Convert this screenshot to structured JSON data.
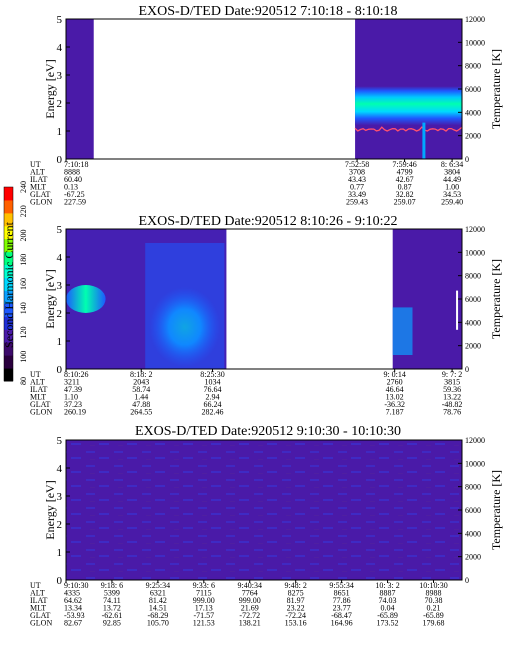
{
  "figure": {
    "colorbar": {
      "label": "Second Harmonic Current",
      "ticks": [
        "80",
        "100",
        "120",
        "140",
        "160",
        "180",
        "200",
        "220",
        "240"
      ],
      "colors": [
        "#000000",
        "#2a003e",
        "#3d0a6b",
        "#4a1aa8",
        "#1f2fd8",
        "#1d59ff",
        "#0aa0ff",
        "#00d8ff",
        "#00ffd0",
        "#00ff80",
        "#80ff00",
        "#ffff00",
        "#ffc000",
        "#ff6000",
        "#ff0000"
      ]
    }
  },
  "chart_data": [
    {
      "type": "heatmap",
      "title": "EXOS-D/TED   Date:920512  7:10:18 - 8:10:18",
      "ylabel": "Energy [eV]",
      "y2label": "Temperature [K]",
      "ylim": [
        0,
        5
      ],
      "y2lim": [
        0,
        12000
      ],
      "yticks": [
        "0",
        "1",
        "2",
        "3",
        "4",
        "5"
      ],
      "y2ticks": [
        "0",
        "2000",
        "4000",
        "6000",
        "8000",
        "10000",
        "12000"
      ],
      "data_segments": [
        {
          "start": 0.0,
          "end": 0.07,
          "pattern": "uniform",
          "base": "#4a1aa8"
        },
        {
          "start": 0.0,
          "end": 0.07,
          "pattern": "none"
        },
        {
          "start": 0.73,
          "end": 1.0,
          "pattern": "band",
          "base": "#4a1aa8",
          "band": [
            1.2,
            2.6
          ],
          "band_colors": [
            "#0aa0ff",
            "#00ffd0",
            "#00ff80",
            "#1d59ff"
          ]
        }
      ],
      "gap": [
        0.07,
        0.73
      ],
      "temperature_line": {
        "color": "#ff4060",
        "start": 0.73,
        "end": 1.0,
        "value": 2500
      },
      "ephemeris": {
        "labels": [
          "UT",
          "ALT",
          "ILAT",
          "MLT",
          "GLAT",
          "GLON"
        ],
        "columns": [
          {
            "pos": 0.0,
            "values": [
              "7:10:18",
              "8888",
              "60.40",
              "0.13",
              "-67.25",
              "227.59"
            ]
          },
          {
            "pos": 0.735,
            "values": [
              "7:52:58",
              "3708",
              "43.43",
              "0.77",
              "33.49",
              "259.43"
            ]
          },
          {
            "pos": 0.855,
            "values": [
              "7:59:46",
              "4799",
              "42.67",
              "0.87",
              "32.82",
              "259.07"
            ]
          },
          {
            "pos": 0.975,
            "values": [
              "8: 6:34",
              "3804",
              "44.49",
              "1.00",
              "34.53",
              "259.40"
            ]
          }
        ]
      }
    },
    {
      "type": "heatmap",
      "title": "EXOS-D/TED   Date:920512  8:10:26 - 9:10:22",
      "ylabel": "Energy [eV]",
      "y2label": "Temperature [K]",
      "ylim": [
        0,
        5
      ],
      "y2lim": [
        0,
        12000
      ],
      "yticks": [
        "0",
        "1",
        "2",
        "3",
        "4",
        "5"
      ],
      "y2ticks": [
        "0",
        "2000",
        "4000",
        "6000",
        "8000",
        "10000",
        "12000"
      ],
      "gap": [
        0.405,
        0.825
      ],
      "ephemeris": {
        "labels": [
          "UT",
          "ALT",
          "ILAT",
          "MLT",
          "GLAT",
          "GLON"
        ],
        "columns": [
          {
            "pos": 0.0,
            "values": [
              "8:10:26",
              "3211",
              "47.39",
              "1.10",
              "37.23",
              "260.19"
            ]
          },
          {
            "pos": 0.19,
            "values": [
              "8:18: 2",
              "2043",
              "58.74",
              "1.44",
              "47.88",
              "264.55"
            ]
          },
          {
            "pos": 0.37,
            "values": [
              "8:25:30",
              "1034",
              "76.64",
              "2.94",
              "66.24",
              "282.46"
            ]
          },
          {
            "pos": 0.83,
            "values": [
              "9: 0:14",
              "2760",
              "46.64",
              "13.02",
              "-36.32",
              "7.187"
            ]
          },
          {
            "pos": 0.975,
            "values": [
              "9: 7: 2",
              "3815",
              "59.36",
              "13.22",
              "-48.82",
              "78.76"
            ]
          }
        ]
      }
    },
    {
      "type": "heatmap",
      "title": "EXOS-D/TED   Date:920512  9:10:30 - 10:10:30",
      "ylabel": "Energy [eV]",
      "y2label": "Temperature [K]",
      "ylim": [
        0,
        5
      ],
      "y2lim": [
        0,
        12000
      ],
      "yticks": [
        "0",
        "1",
        "2",
        "3",
        "4",
        "5"
      ],
      "y2ticks": [
        "0",
        "2000",
        "4000",
        "6000",
        "8000",
        "10000",
        "12000"
      ],
      "ephemeris": {
        "labels": [
          "UT",
          "ALT",
          "ILAT",
          "MLT",
          "GLAT",
          "GLON"
        ],
        "columns": [
          {
            "pos": 0.0,
            "values": [
              "9:10:30",
              "4335",
              "64.62",
              "13.34",
              "-53.93",
              "82.67"
            ]
          },
          {
            "pos": 0.116,
            "values": [
              "9:18: 6",
              "5399",
              "74.11",
              "13.72",
              "-62.61",
              "92.85"
            ]
          },
          {
            "pos": 0.232,
            "values": [
              "9:25:34",
              "6321",
              "81.42",
              "14.51",
              "-68.29",
              "105.70"
            ]
          },
          {
            "pos": 0.348,
            "values": [
              "9:33: 6",
              "7115",
              "999.00",
              "17.13",
              "-71.57",
              "121.53"
            ]
          },
          {
            "pos": 0.464,
            "values": [
              "9:40:34",
              "7764",
              "999.00",
              "21.69",
              "-72.72",
              "138.21"
            ]
          },
          {
            "pos": 0.58,
            "values": [
              "9:48: 2",
              "8275",
              "81.97",
              "23.22",
              "-72.24",
              "153.16"
            ]
          },
          {
            "pos": 0.696,
            "values": [
              "9:55:34",
              "8651",
              "77.86",
              "23.77",
              "-68.47",
              "164.96"
            ]
          },
          {
            "pos": 0.812,
            "values": [
              "10: 3: 2",
              "8887",
              "74.03",
              "0.04",
              "-65.89",
              "173.52"
            ]
          },
          {
            "pos": 0.928,
            "values": [
              "10:10:30",
              "8988",
              "70.38",
              "0.21",
              "-65.89",
              "179.68"
            ]
          }
        ]
      }
    }
  ]
}
